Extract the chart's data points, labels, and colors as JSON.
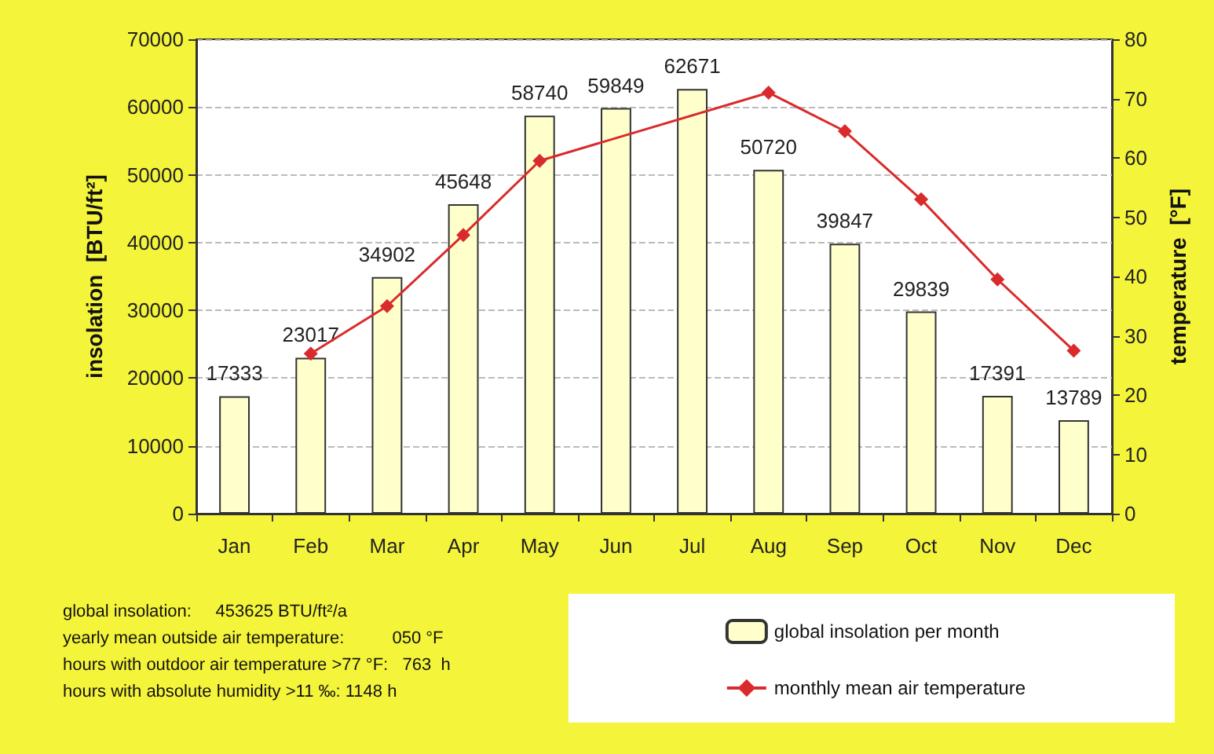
{
  "chart_data": {
    "type": "bar",
    "categories": [
      "Jan",
      "Feb",
      "Mar",
      "Apr",
      "May",
      "Jun",
      "Jul",
      "Aug",
      "Sep",
      "Oct",
      "Nov",
      "Dec"
    ],
    "series": [
      {
        "name": "global insolation per month",
        "color": "#ffffcc",
        "values": [
          17333,
          23017,
          34902,
          45648,
          58740,
          59849,
          62671,
          50720,
          39847,
          29839,
          17391,
          13789
        ],
        "value_labels": [
          "17333",
          "23017",
          "34902",
          "45648",
          "58740",
          "59849",
          "62671",
          "50720",
          "39847",
          "29839",
          "17391",
          "13789"
        ]
      },
      {
        "name": "monthly mean air temperature",
        "type": "line",
        "axis": "y2",
        "color": "#d92b2b",
        "values": [
          null,
          27,
          35,
          47,
          59.5,
          null,
          null,
          71,
          64.5,
          53,
          39.5,
          27.5
        ]
      }
    ],
    "marker": "diamond",
    "ylabel": "insolation  [BTU/ft²]",
    "y2label": "temperature  [°F]",
    "ylim": [
      0,
      70000
    ],
    "yticks": [
      0,
      10000,
      20000,
      30000,
      40000,
      50000,
      60000,
      70000
    ],
    "y2lim": [
      0,
      80
    ],
    "y2ticks": [
      0,
      10,
      20,
      30,
      40,
      50,
      60,
      70,
      80
    ],
    "grid": "y",
    "legend": "bottom right",
    "annotations": [
      "global insolation:     453625 BTU/ft²/a",
      "yearly mean outside air temperature:          050 °F",
      "hours with outdoor air temperature >77 °F:   763  h",
      "hours with absolute humidity >11 ‰: 1148 h"
    ]
  }
}
